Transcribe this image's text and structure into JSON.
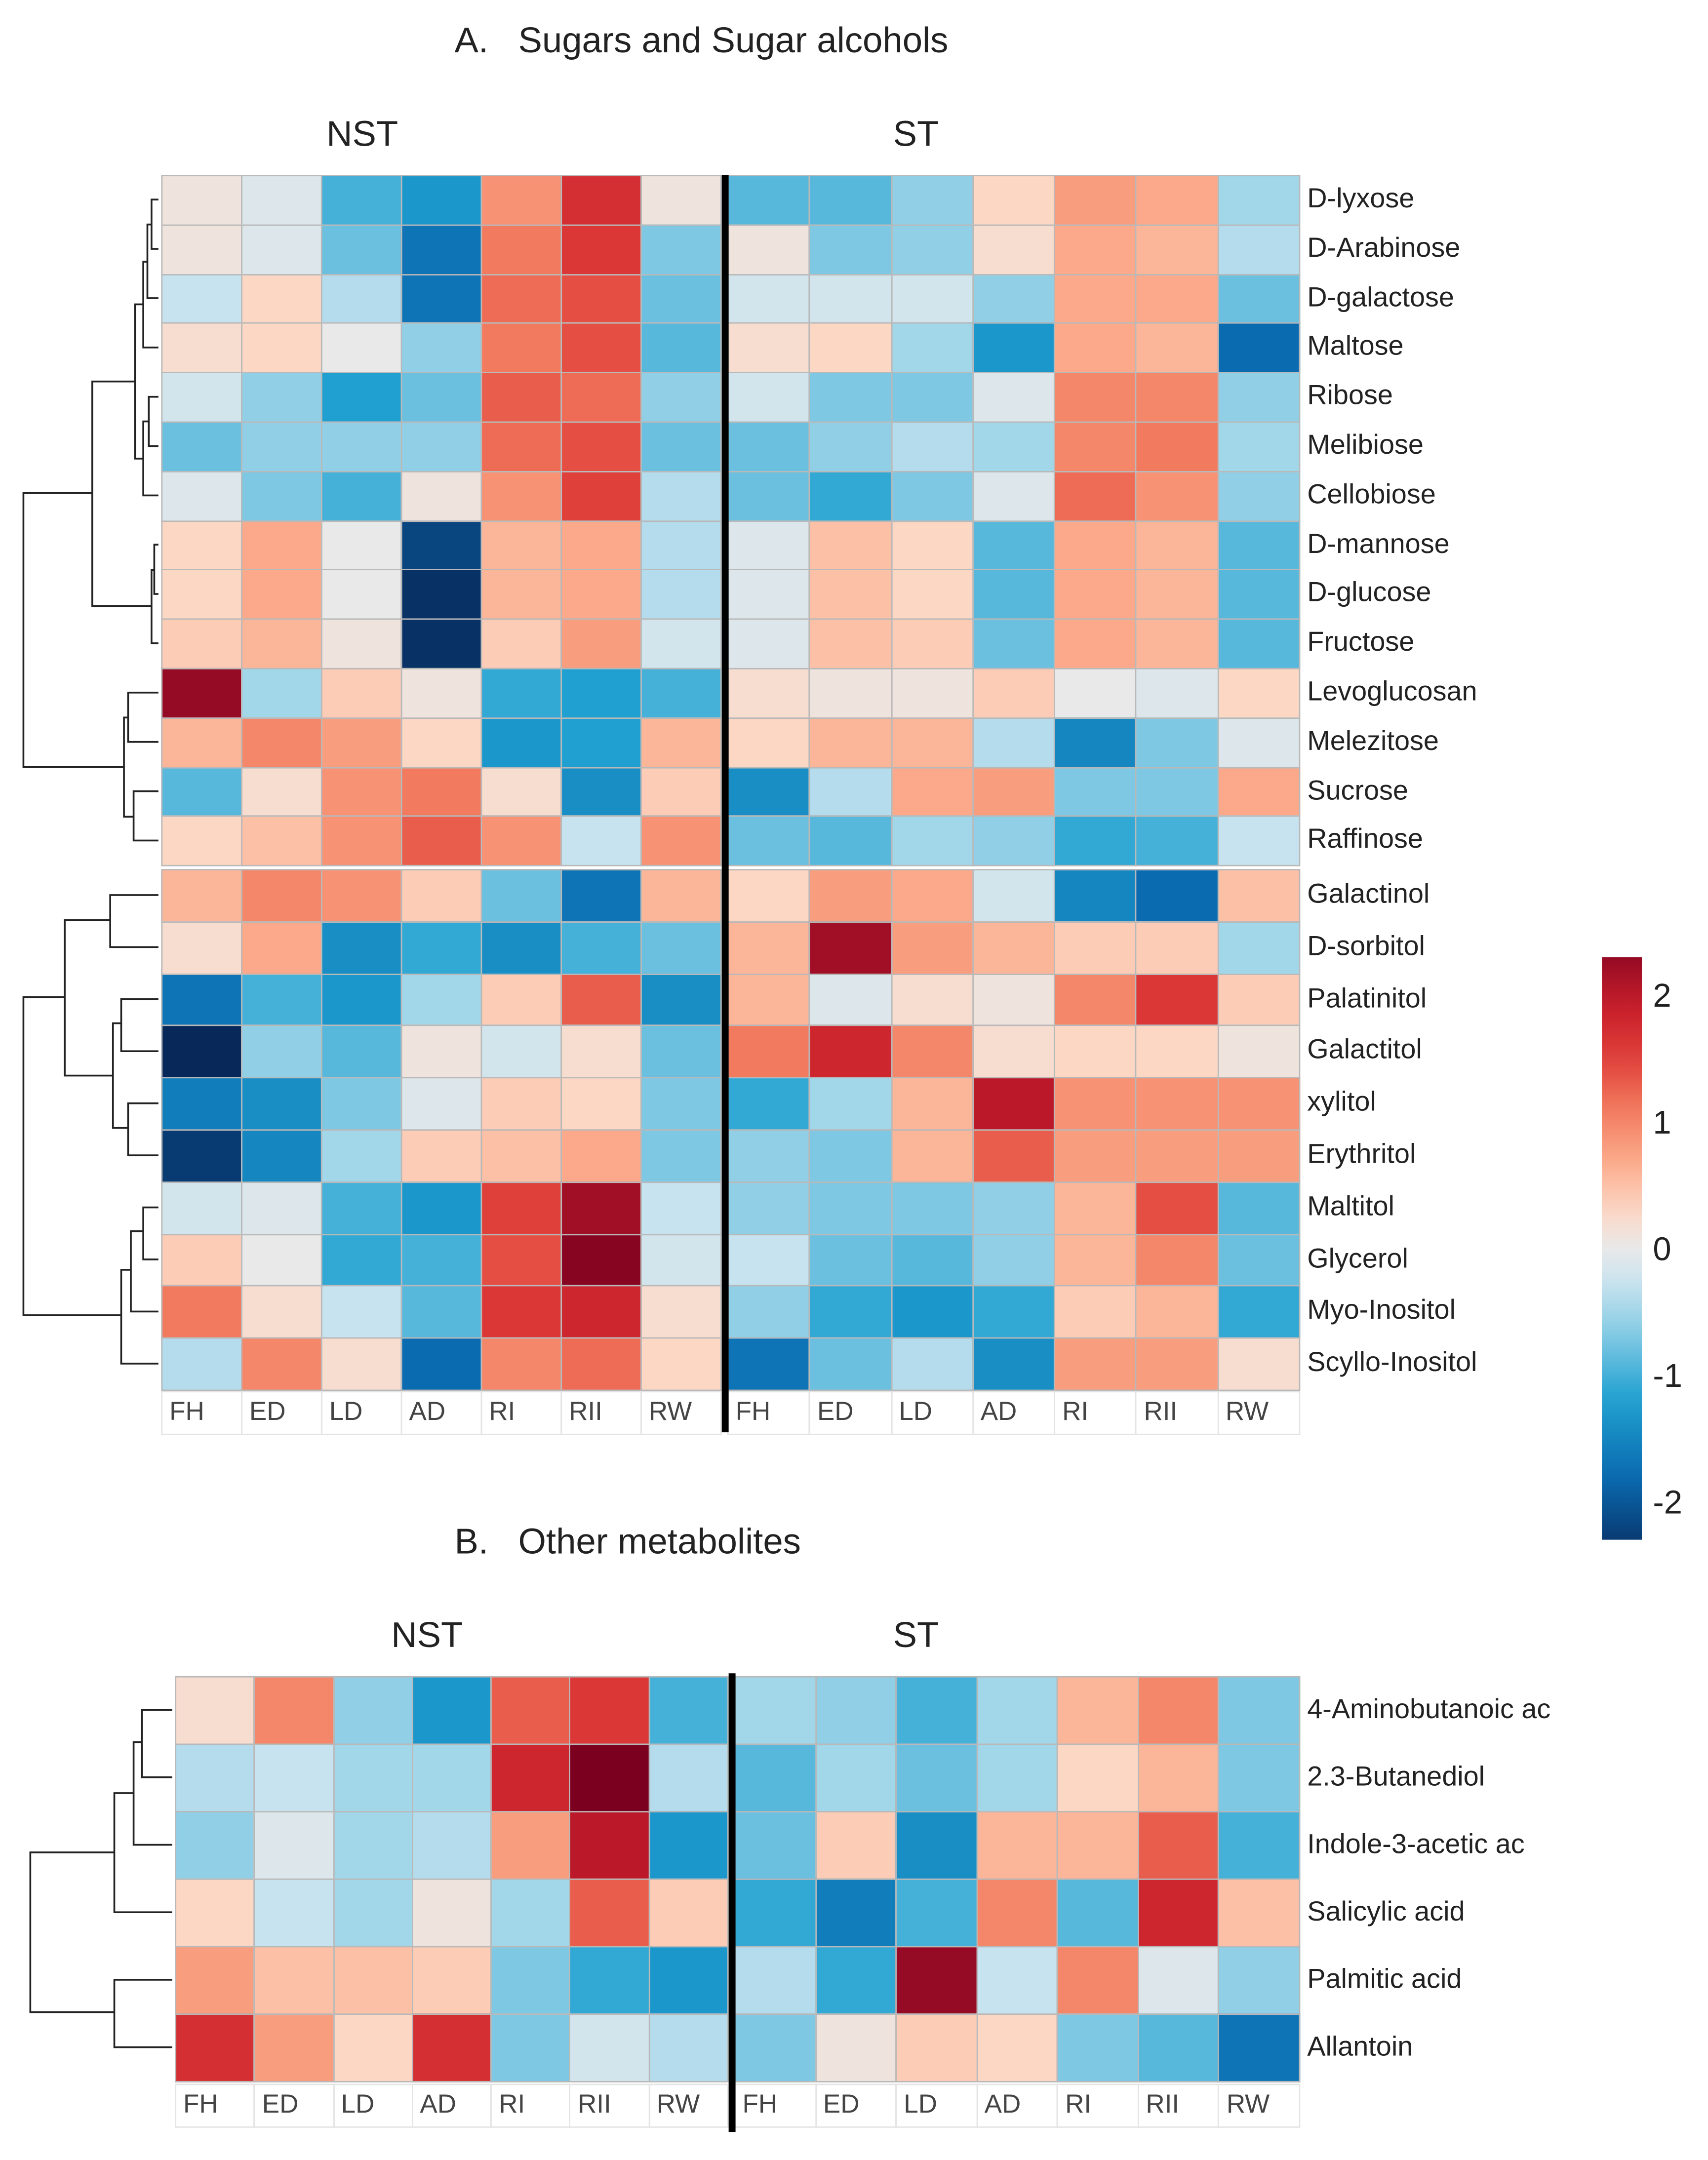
{
  "chart_data": [
    {
      "type": "heatmap",
      "title": "A.   Sugars and Sugar alcohols",
      "groups": [
        "NST",
        "ST"
      ],
      "columns": [
        "FH",
        "ED",
        "LD",
        "AD",
        "RI",
        "RII",
        "RW",
        "FH",
        "ED",
        "LD",
        "AD",
        "RI",
        "RII",
        "RW"
      ],
      "rows": [
        "D-lyxose",
        "D-Arabinose",
        "D-galactose",
        "Maltose",
        "Ribose",
        "Melibiose",
        "Cellobiose",
        "D-mannose",
        "D-glucose",
        "Fructose",
        "Levoglucosan",
        "Melezitose",
        "Sucrose",
        "Raffinose",
        "Galactinol",
        "D-sorbitol",
        "Palatinitol",
        "Galactitol",
        "xylitol",
        "Erythritol",
        "Maltitol",
        "Glycerol",
        "Myo-Inositol",
        "Scyllo-Inositol"
      ],
      "values": [
        [
          0.1,
          -0.1,
          -1.0,
          -1.3,
          0.9,
          1.7,
          0.1,
          -0.9,
          -0.9,
          -0.6,
          0.3,
          0.8,
          0.7,
          -0.5
        ],
        [
          0.1,
          -0.1,
          -0.8,
          -1.7,
          1.1,
          1.6,
          -0.7,
          0.1,
          -0.7,
          -0.6,
          0.2,
          0.7,
          0.6,
          -0.4
        ],
        [
          -0.3,
          0.3,
          -0.4,
          -1.7,
          1.2,
          1.4,
          -0.8,
          -0.2,
          -0.2,
          -0.2,
          -0.6,
          0.7,
          0.7,
          -0.8
        ],
        [
          0.2,
          0.3,
          0.0,
          -0.6,
          1.1,
          1.4,
          -0.9,
          0.2,
          0.3,
          -0.5,
          -1.3,
          0.7,
          0.6,
          -1.8
        ],
        [
          -0.2,
          -0.6,
          -1.2,
          -0.8,
          1.3,
          1.2,
          -0.6,
          -0.2,
          -0.7,
          -0.7,
          -0.1,
          1.0,
          1.0,
          -0.6
        ],
        [
          -0.8,
          -0.6,
          -0.6,
          -0.6,
          1.2,
          1.4,
          -0.8,
          -0.8,
          -0.6,
          -0.4,
          -0.5,
          1.0,
          1.1,
          -0.5
        ],
        [
          -0.1,
          -0.7,
          -1.0,
          0.1,
          0.9,
          1.5,
          -0.4,
          -0.8,
          -1.1,
          -0.7,
          -0.1,
          1.2,
          0.9,
          -0.6
        ],
        [
          0.3,
          0.7,
          0.0,
          -2.2,
          0.6,
          0.7,
          -0.4,
          -0.1,
          0.5,
          0.3,
          -0.9,
          0.7,
          0.6,
          -0.9
        ],
        [
          0.3,
          0.7,
          0.0,
          -2.4,
          0.6,
          0.7,
          -0.4,
          -0.1,
          0.5,
          0.3,
          -0.9,
          0.7,
          0.6,
          -0.9
        ],
        [
          0.4,
          0.6,
          0.1,
          -2.4,
          0.4,
          0.8,
          -0.2,
          -0.1,
          0.5,
          0.4,
          -0.8,
          0.7,
          0.6,
          -0.9
        ],
        [
          2.3,
          -0.5,
          0.4,
          0.1,
          -1.1,
          -1.2,
          -1.0,
          0.2,
          0.1,
          0.1,
          0.4,
          0.0,
          -0.1,
          0.3
        ],
        [
          0.6,
          1.0,
          0.8,
          0.3,
          -1.3,
          -1.2,
          0.6,
          0.3,
          0.6,
          0.6,
          -0.4,
          -1.5,
          -0.7,
          -0.1
        ],
        [
          -0.9,
          0.2,
          0.9,
          1.1,
          0.2,
          -1.4,
          0.4,
          -1.4,
          -0.4,
          0.7,
          0.8,
          -0.7,
          -0.7,
          0.7
        ],
        [
          0.3,
          0.5,
          0.9,
          1.3,
          0.9,
          -0.3,
          0.9,
          -0.8,
          -0.9,
          -0.5,
          -0.6,
          -1.1,
          -1.0,
          -0.3
        ],
        [
          0.6,
          1.0,
          0.9,
          0.4,
          -0.8,
          -1.7,
          0.6,
          0.3,
          0.8,
          0.7,
          -0.2,
          -1.5,
          -1.8,
          0.5
        ],
        [
          0.2,
          0.7,
          -1.4,
          -1.1,
          -1.4,
          -1.0,
          -0.8,
          0.6,
          2.2,
          0.8,
          0.6,
          0.4,
          0.4,
          -0.5
        ],
        [
          -1.7,
          -1.0,
          -1.3,
          -0.5,
          0.4,
          1.3,
          -1.4,
          0.6,
          -0.1,
          0.2,
          0.1,
          1.0,
          1.6,
          0.4
        ],
        [
          -2.5,
          -0.6,
          -0.9,
          0.1,
          -0.2,
          0.2,
          -0.8,
          1.1,
          1.8,
          1.0,
          0.2,
          0.3,
          0.3,
          0.1
        ],
        [
          -1.6,
          -1.4,
          -0.7,
          -0.1,
          0.4,
          0.3,
          -0.7,
          -1.1,
          -0.5,
          0.6,
          2.0,
          0.9,
          0.9,
          0.9
        ],
        [
          -2.3,
          -1.5,
          -0.5,
          0.4,
          0.5,
          0.7,
          -0.7,
          -0.6,
          -0.7,
          0.6,
          1.3,
          0.8,
          0.8,
          0.8
        ],
        [
          -0.2,
          -0.1,
          -1.0,
          -1.3,
          1.5,
          2.2,
          -0.3,
          -0.6,
          -0.7,
          -0.7,
          -0.6,
          0.6,
          1.4,
          -0.9
        ],
        [
          0.4,
          0.0,
          -1.1,
          -1.0,
          1.4,
          2.4,
          -0.2,
          -0.3,
          -0.8,
          -0.9,
          -0.6,
          0.6,
          1.0,
          -0.8
        ],
        [
          1.1,
          0.2,
          -0.3,
          -0.9,
          1.6,
          1.8,
          0.2,
          -0.6,
          -1.1,
          -1.3,
          -1.1,
          0.4,
          0.6,
          -1.1
        ],
        [
          -0.4,
          1.0,
          0.2,
          -1.8,
          1.0,
          1.2,
          0.3,
          -1.7,
          -0.8,
          -0.4,
          -1.4,
          0.8,
          0.8,
          0.2
        ]
      ]
    },
    {
      "type": "heatmap",
      "title": "B.   Other metabolites",
      "groups": [
        "NST",
        "ST"
      ],
      "columns": [
        "FH",
        "ED",
        "LD",
        "AD",
        "RI",
        "RII",
        "RW",
        "FH",
        "ED",
        "LD",
        "AD",
        "RI",
        "RII",
        "RW"
      ],
      "rows": [
        "4-Aminobutanoic ac",
        "2.3-Butanediol",
        "Indole-3-acetic ac",
        "Salicylic acid",
        "Palmitic acid",
        "Allantoin"
      ],
      "values": [
        [
          0.2,
          1.0,
          -0.6,
          -1.3,
          1.3,
          1.6,
          -1.0,
          -0.5,
          -0.6,
          -1.0,
          -0.5,
          0.6,
          1.0,
          -0.7
        ],
        [
          -0.4,
          -0.3,
          -0.5,
          -0.5,
          1.8,
          2.5,
          -0.4,
          -0.9,
          -0.5,
          -0.8,
          -0.5,
          0.3,
          0.6,
          -0.7
        ],
        [
          -0.6,
          -0.1,
          -0.5,
          -0.4,
          0.8,
          2.0,
          -1.3,
          -0.8,
          0.4,
          -1.4,
          0.6,
          0.6,
          1.3,
          -1.0
        ],
        [
          0.3,
          -0.3,
          -0.5,
          0.1,
          -0.5,
          1.3,
          0.4,
          -1.1,
          -1.6,
          -1.0,
          1.0,
          -0.9,
          1.8,
          0.5
        ],
        [
          0.8,
          0.5,
          0.5,
          0.4,
          -0.7,
          -1.1,
          -1.3,
          -0.4,
          -1.1,
          2.3,
          -0.3,
          1.0,
          -0.1,
          -0.6
        ],
        [
          1.7,
          0.8,
          0.3,
          1.7,
          -0.7,
          -0.2,
          -0.4,
          -0.7,
          0.1,
          0.4,
          0.3,
          -0.7,
          -0.9,
          -1.7
        ]
      ]
    }
  ],
  "legend": {
    "ticks": [
      "2",
      "1",
      "0",
      "-1",
      "-2"
    ],
    "tick_values": [
      2,
      1,
      0,
      -1,
      -2
    ],
    "range": [
      -2.3,
      2.3
    ]
  },
  "colors": {
    "low": "#08285a",
    "mid": "#e9e9e9",
    "high": "#7b0020"
  }
}
